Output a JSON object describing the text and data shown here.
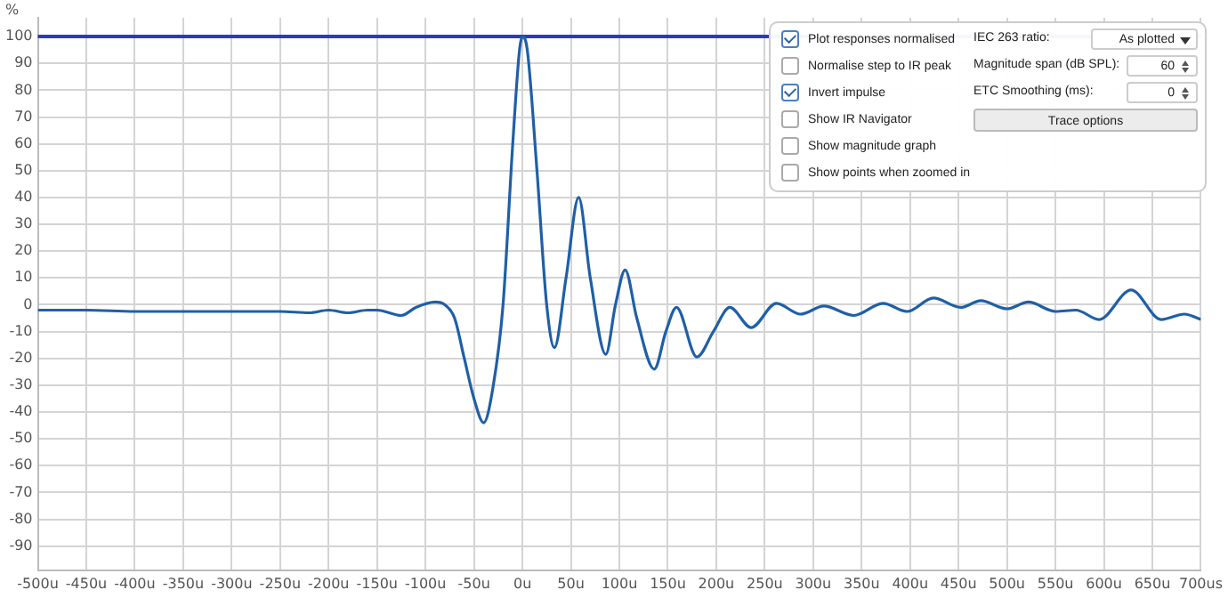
{
  "chart_data": {
    "type": "line",
    "ylabel": "%",
    "x": [
      -500,
      -450,
      -400,
      -300,
      -250,
      -220,
      -200,
      -180,
      -160,
      -150,
      -125,
      -110,
      -90,
      -80,
      -70,
      -60,
      -50,
      -40,
      -30,
      -20,
      -10,
      -3,
      0,
      5,
      15,
      25,
      33,
      45,
      58,
      70,
      86,
      96,
      106,
      118,
      136,
      148,
      159,
      180,
      197,
      214,
      236,
      262,
      287,
      311,
      342,
      372,
      397,
      424,
      452,
      473,
      500,
      522,
      550,
      571,
      595,
      628,
      659,
      683,
      700
    ],
    "series": [
      {
        "color": "#1f5fa8",
        "marker": "none",
        "values": [
          -2,
          -2,
          -2.5,
          -2.5,
          -2.5,
          -3,
          -2,
          -3,
          -2,
          -2,
          -4,
          -1,
          1,
          0,
          -5,
          -20,
          -35,
          -44,
          -30,
          0,
          60,
          95,
          100,
          95,
          50,
          0,
          -16,
          10,
          40,
          10,
          -18.5,
          0,
          13,
          -5,
          -24,
          -10,
          -1,
          -19.5,
          -10,
          -1,
          -8.5,
          0.5,
          -3.5,
          -0.5,
          -4,
          0.5,
          -2.5,
          2.5,
          -1,
          1.5,
          -1.5,
          1,
          -2.5,
          -2,
          -5.5,
          5.5,
          -5.5,
          -3.5,
          -5.5
        ]
      }
    ],
    "xlim": [
      -500,
      700
    ],
    "xticks": [
      {
        "value": -500,
        "label": "-500u"
      },
      {
        "value": -450,
        "label": "-450u"
      },
      {
        "value": -400,
        "label": "-400u"
      },
      {
        "value": -350,
        "label": "-350u"
      },
      {
        "value": -300,
        "label": "-300u"
      },
      {
        "value": -250,
        "label": "-250u"
      },
      {
        "value": -200,
        "label": "-200u"
      },
      {
        "value": -150,
        "label": "-150u"
      },
      {
        "value": -100,
        "label": "-100u"
      },
      {
        "value": -50,
        "label": "-50u"
      },
      {
        "value": 0,
        "label": "0u"
      },
      {
        "value": 50,
        "label": "50u"
      },
      {
        "value": 100,
        "label": "100u"
      },
      {
        "value": 150,
        "label": "150u"
      },
      {
        "value": 200,
        "label": "200u"
      },
      {
        "value": 250,
        "label": "250u"
      },
      {
        "value": 300,
        "label": "300u"
      },
      {
        "value": 350,
        "label": "350u"
      },
      {
        "value": 400,
        "label": "400u"
      },
      {
        "value": 450,
        "label": "450u"
      },
      {
        "value": 500,
        "label": "500u"
      },
      {
        "value": 550,
        "label": "550u"
      },
      {
        "value": 600,
        "label": "600u"
      },
      {
        "value": 650,
        "label": "650u"
      },
      {
        "value": 700,
        "label": "700us"
      }
    ],
    "ylim": [
      -99,
      107
    ],
    "yticks": [
      -90,
      -80,
      -70,
      -60,
      -50,
      -40,
      -30,
      -20,
      -10,
      0,
      10,
      20,
      30,
      40,
      50,
      60,
      70,
      80,
      90,
      100
    ],
    "grid": true,
    "line_style": "solid",
    "ref_lines": [
      {
        "axis": "y",
        "value": 100,
        "color": "#2a3bbf"
      }
    ],
    "annotations": [
      "Plot responses normalised",
      "Normalise step to IR peak",
      "Invert impulse",
      "Show IR Navigator",
      "Show magnitude graph",
      "Show points when zoomed in",
      "IEC 263 ratio:",
      "As plotted",
      "Magnitude span (dB SPL):",
      "60",
      "ETC Smoothing (ms):",
      "0",
      "Trace options"
    ]
  }
}
